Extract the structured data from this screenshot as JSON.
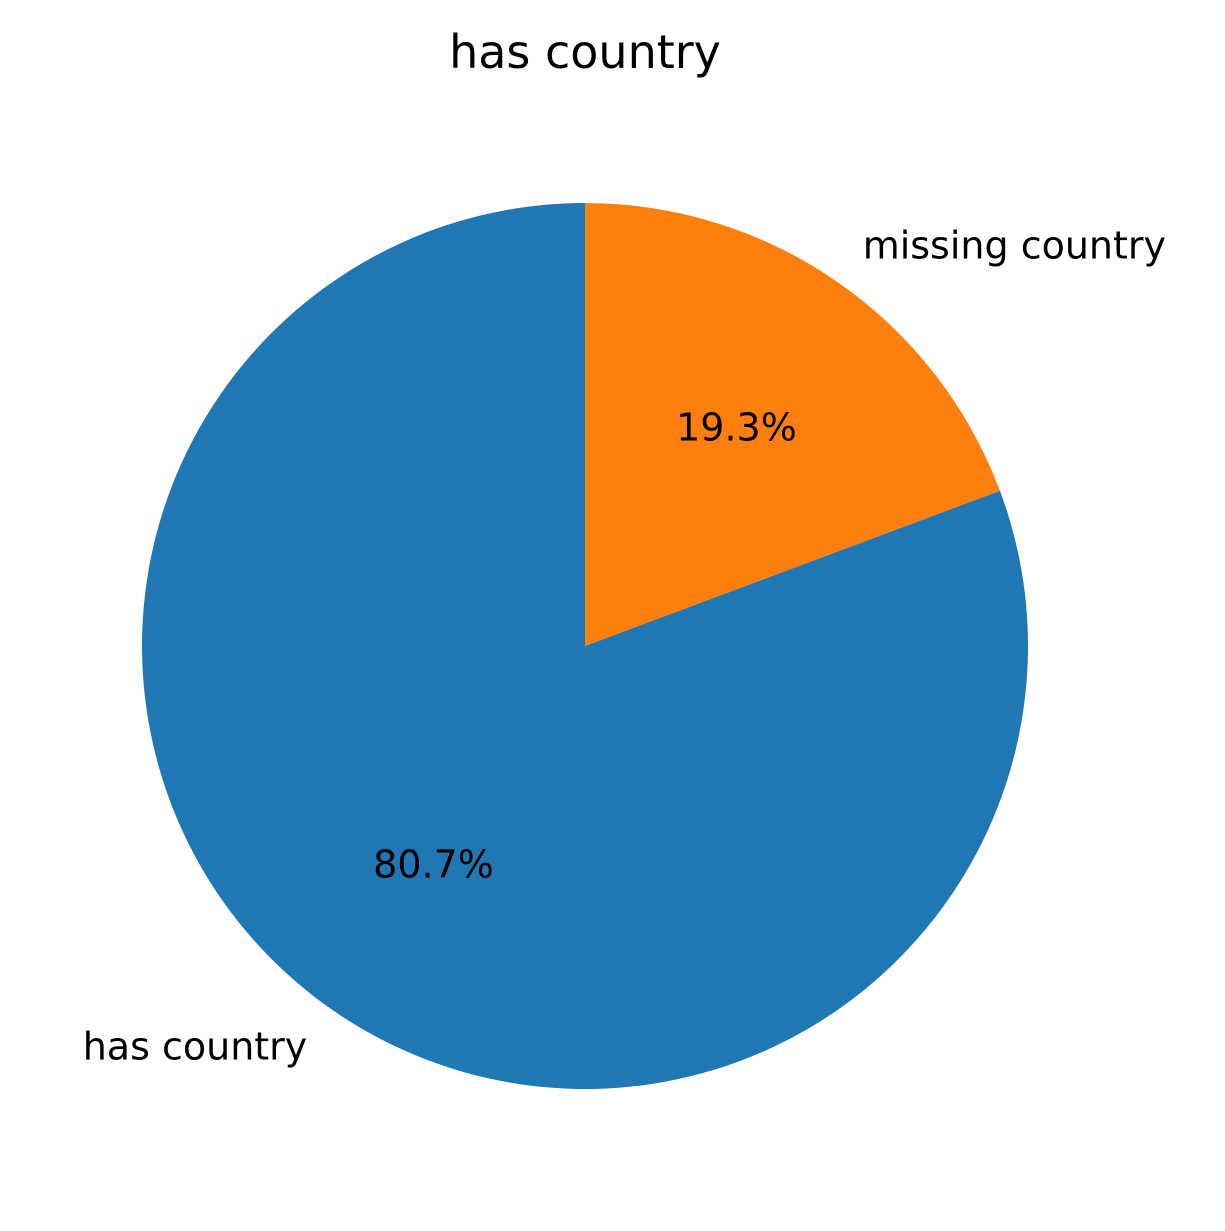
{
  "chart_data": {
    "type": "pie",
    "title": "has country",
    "slices": [
      {
        "label": "has country",
        "value": 80.7,
        "pct_label": "80.7%",
        "color": "#1f77b4"
      },
      {
        "label": "missing country",
        "value": 19.3,
        "pct_label": "19.3%",
        "color": "#ff7f0e"
      }
    ],
    "start_angle_deg": 90,
    "direction": "counterclockwise"
  }
}
